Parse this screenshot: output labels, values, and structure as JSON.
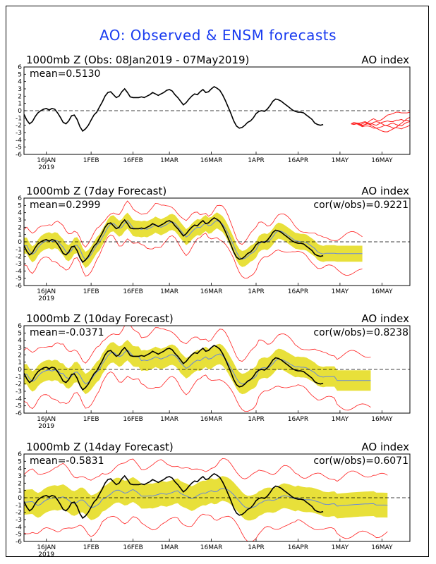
{
  "title": "AO: Observed & ENSM forecasts",
  "colors": {
    "title": "#1a3cf0",
    "observed": "#000000",
    "ensemble_spread": "#e8e03a",
    "member_bounds": "#ff2020",
    "ensemble_mean": "#6688dd",
    "zero_line": "#000000"
  },
  "chart_data": [
    {
      "type": "line",
      "title": "1000mb Z (Obs: 08Jan2019 - 07May2019)",
      "label_right": "AO index",
      "stat_left": "mean=0.5130",
      "ylim": [
        -6,
        6
      ],
      "yticks": [
        "6",
        "5",
        "4",
        "3",
        "2",
        "1",
        "0",
        "-1",
        "-2",
        "-3",
        "-4",
        "-5",
        "-6"
      ],
      "xticks": [
        "16JAN",
        "1FEB",
        "16FEB",
        "1MAR",
        "16MAR",
        "1APR",
        "16APR",
        "1MAY",
        "16MAY"
      ],
      "year_label": "2019",
      "x_start_day": 0,
      "x_end_day": 138,
      "observed": [
        -0.5,
        -1.3,
        -1.8,
        -1.5,
        -0.8,
        -0.3,
        0,
        0.2,
        0.3,
        0.1,
        0.3,
        0.2,
        -0.3,
        -0.9,
        -1.6,
        -1.8,
        -1.4,
        -0.7,
        -0.6,
        -1.2,
        -2.2,
        -2.8,
        -2.5,
        -2,
        -1.3,
        -0.6,
        -0.2,
        0.5,
        1.2,
        2,
        2.5,
        2.6,
        2.2,
        1.8,
        2,
        2.6,
        3,
        2.5,
        1.9,
        1.8,
        1.8,
        1.8,
        1.9,
        1.8,
        2,
        2.2,
        2.5,
        2.3,
        2.1,
        2.3,
        2.5,
        2.8,
        2.9,
        2.7,
        2.2,
        1.8,
        1.3,
        0.8,
        1.1,
        1.6,
        2,
        2.3,
        2.2,
        2.6,
        2.9,
        2.5,
        2.6,
        3,
        3.3,
        3.1,
        2.8,
        2.2,
        1.4,
        0.5,
        -0.4,
        -1.4,
        -2.1,
        -2.4,
        -2.3,
        -2,
        -1.6,
        -1.4,
        -1,
        -0.4,
        -0.1,
        0,
        -0.1,
        0.2,
        0.7,
        1.3,
        1.6,
        1.5,
        1.3,
        1,
        0.7,
        0.4,
        0.1,
        -0.1,
        -0.2,
        -0.2,
        -0.3,
        -0.6,
        -0.9,
        -1.2,
        -1.7,
        -1.9,
        -2,
        -1.9
      ],
      "members_start": 117,
      "members": [
        [
          -1.8,
          -1.9,
          -1.7,
          -1.8,
          -2,
          -1.9,
          -1.6,
          -1.3,
          -1.1,
          -1.3,
          -1.4,
          -1.2,
          -0.9,
          -0.6,
          -0.5,
          -0.4,
          -0.2,
          -0.2,
          -0.3,
          -0.3,
          -0.3,
          -0.2
        ],
        [
          -1.8,
          -1.9,
          -1.8,
          -1.9,
          -2.1,
          -1.9,
          -1.8,
          -1.7,
          -1.9,
          -2,
          -1.8,
          -1.6,
          -1.5,
          -1.4,
          -1.5,
          -1.5,
          -1.3,
          -1.3,
          -1.2,
          -1.4,
          -1.3,
          -1.4
        ],
        [
          -1.8,
          -1.8,
          -1.8,
          -2,
          -2.2,
          -2.1,
          -2.1,
          -2.2,
          -2.4,
          -2.4,
          -2.3,
          -2.2,
          -2,
          -2.1,
          -2.2,
          -2.4,
          -2.3,
          -2.4,
          -2.5,
          -2.3,
          -2.2,
          -2
        ],
        [
          -1.8,
          -1.6,
          -1.7,
          -1.7,
          -1.6,
          -1.5,
          -1.7,
          -1.9,
          -1.6,
          -1.5,
          -1.6,
          -1.8,
          -2,
          -2,
          -1.8,
          -1.7,
          -1.9,
          -2,
          -2.1,
          -1.8,
          -1.6,
          -1.5
        ],
        [
          -1.8,
          -1.9,
          -1.7,
          -1.9,
          -1.8,
          -1.6,
          -1.8,
          -2,
          -2.2,
          -2.4,
          -2.6,
          -2.8,
          -2.9,
          -2.9,
          -2.7,
          -2.5,
          -2.3,
          -2,
          -1.7,
          -1.4,
          -1.1,
          -0.9
        ]
      ]
    },
    {
      "type": "line",
      "title": "1000mb Z (7day Forecast)",
      "label_right": "AO index",
      "stat_left": "mean=0.2999",
      "stat_right": "cor(w/obs)=0.9221",
      "ylim": [
        -6,
        6
      ],
      "yticks": [
        "6",
        "5",
        "4",
        "3",
        "2",
        "1",
        "0",
        "-1",
        "-2",
        "-3",
        "-4",
        "-5",
        "-6"
      ],
      "xticks": [
        "16JAN",
        "1FEB",
        "16FEB",
        "1MAR",
        "16MAR",
        "1APR",
        "16APR",
        "1MAY",
        "16MAY"
      ],
      "year_label": "2019",
      "observed_end": 108,
      "forecast_end": 121,
      "spread_width": 1.1,
      "outer_width": 2.2,
      "mean_offset": [
        -0.2,
        0.3,
        0.5,
        0.2,
        -0.3,
        -0.5,
        0.2,
        0.6,
        0.4,
        -0.4
      ]
    },
    {
      "type": "line",
      "title": "1000mb Z (10day Forecast)",
      "label_right": "AO index",
      "stat_left": "mean=-0.0371",
      "stat_right": "cor(w/obs)=0.8238",
      "ylim": [
        -6,
        6
      ],
      "yticks": [
        "6",
        "5",
        "4",
        "3",
        "2",
        "1",
        "0",
        "-1",
        "-2",
        "-3",
        "-4",
        "-5",
        "-6"
      ],
      "xticks": [
        "16JAN",
        "1FEB",
        "16FEB",
        "1MAR",
        "16MAR",
        "1APR",
        "16APR",
        "1MAY",
        "16MAY"
      ],
      "year_label": "2019",
      "observed_end": 108,
      "forecast_end": 124,
      "spread_width": 1.4,
      "outer_width": 3.3,
      "mean_offset": [
        -0.6,
        0.2,
        0.8,
        -0.3,
        -0.9,
        -0.4,
        0.5,
        0.9,
        -0.2,
        -0.7
      ]
    },
    {
      "type": "line",
      "title": "1000mb Z (14day Forecast)",
      "label_right": "AO index",
      "stat_left": "mean=-0.5831",
      "stat_right": "cor(w/obs)=0.6071",
      "ylim": [
        -6,
        6
      ],
      "yticks": [
        "6",
        "5",
        "4",
        "3",
        "2",
        "1",
        "0",
        "-1",
        "-2",
        "-3",
        "-4",
        "-5",
        "-6"
      ],
      "xticks": [
        "16JAN",
        "1FEB",
        "16FEB",
        "1MAR",
        "16MAR",
        "1APR",
        "16APR",
        "1MAY",
        "16MAY"
      ],
      "year_label": "2019",
      "observed_end": 108,
      "forecast_end": 130,
      "spread_width": 1.7,
      "outer_width": 3.8,
      "mean_offset": [
        -0.8,
        -0.5,
        0.1,
        -0.6,
        -1.2,
        -1,
        -0.4,
        0.2,
        -0.5,
        -0.9
      ]
    }
  ]
}
